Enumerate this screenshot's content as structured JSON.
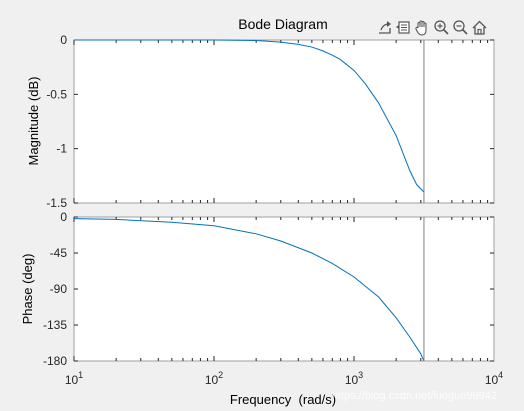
{
  "toolbar": {
    "items": [
      {
        "icon": "export-icon"
      },
      {
        "icon": "brush-icon"
      },
      {
        "icon": "pan-hand-icon"
      },
      {
        "icon": "zoom-in-icon"
      },
      {
        "icon": "zoom-out-icon"
      },
      {
        "icon": "home-icon"
      }
    ]
  },
  "watermark": "https://blog.csdn.net/luoguo99942",
  "colors": {
    "line": "#0072bd",
    "marker": "#808080",
    "axes_bg": "#ffffff",
    "figure_bg": "#f0f0f0"
  },
  "chart_data": {
    "type": "line",
    "title": "Bode Diagram",
    "xlabel": "Frequency  (rad/s)",
    "xscale": "log",
    "xlim": [
      10,
      10000
    ],
    "x_ticks": [
      {
        "base": "10",
        "exp": "1"
      },
      {
        "base": "10",
        "exp": "2"
      },
      {
        "base": "10",
        "exp": "3"
      },
      {
        "base": "10",
        "exp": "4"
      }
    ],
    "marker_x": 3160,
    "magnitude": {
      "ylabel": "Magnitude (dB)",
      "ylim": [
        -1.5,
        0
      ],
      "y_ticks": [
        0,
        -0.5,
        -1,
        -1.5
      ],
      "y_tick_labels": [
        "0",
        "-0.5",
        "-1",
        "-1.5"
      ],
      "x": [
        10,
        30,
        100,
        200,
        300,
        400,
        500,
        600,
        700,
        800,
        1000,
        1200,
        1500,
        2000,
        2500,
        2800,
        3160
      ],
      "y": [
        0,
        0,
        0,
        -0.005,
        -0.02,
        -0.04,
        -0.065,
        -0.1,
        -0.14,
        -0.18,
        -0.28,
        -0.4,
        -0.58,
        -0.88,
        -1.2,
        -1.33,
        -1.4
      ]
    },
    "phase": {
      "ylabel": "Phase (deg)",
      "ylim": [
        -180,
        0
      ],
      "y_ticks": [
        0,
        -45,
        -90,
        -135,
        -180
      ],
      "y_tick_labels": [
        "0",
        "-45",
        "-90",
        "-135",
        "-180"
      ],
      "x": [
        10,
        20,
        50,
        100,
        200,
        300,
        500,
        700,
        1000,
        1500,
        2000,
        2500,
        3000,
        3160
      ],
      "y": [
        -2,
        -3,
        -6.5,
        -11,
        -21,
        -30,
        -45,
        -58,
        -75,
        -100,
        -126,
        -150,
        -171,
        -180
      ]
    }
  }
}
